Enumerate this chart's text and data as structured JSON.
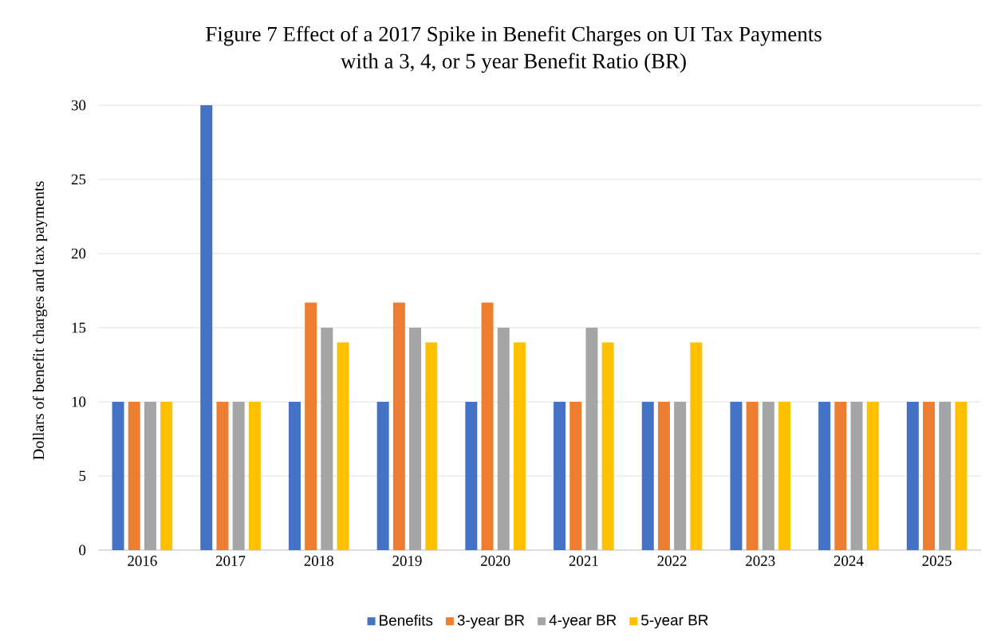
{
  "chart_data": {
    "type": "bar",
    "title": "Figure 7  Effect of a 2017 Spike in Benefit Charges on UI Tax Payments\nwith a 3, 4, or 5 year Benefit Ratio (BR)",
    "ylabel": "Dollars of benefit charges and tax payments",
    "categories": [
      "2016",
      "2017",
      "2018",
      "2019",
      "2020",
      "2021",
      "2022",
      "2023",
      "2024",
      "2025"
    ],
    "series": [
      {
        "name": "Benefits",
        "color": "#4472c4",
        "values": [
          10,
          30,
          10,
          10,
          10,
          10,
          10,
          10,
          10,
          10
        ]
      },
      {
        "name": "3-year BR",
        "color": "#ed7d31",
        "values": [
          10,
          10,
          16.7,
          16.7,
          16.7,
          10,
          10,
          10,
          10,
          10
        ]
      },
      {
        "name": "4-year BR",
        "color": "#a5a5a5",
        "values": [
          10,
          10,
          15,
          15,
          15,
          15,
          10,
          10,
          10,
          10
        ]
      },
      {
        "name": "5-year BR",
        "color": "#ffc000",
        "values": [
          10,
          10,
          14,
          14,
          14,
          14,
          14,
          10,
          10,
          10
        ]
      }
    ],
    "ylim": [
      0,
      30
    ],
    "yticks": [
      0,
      5,
      10,
      15,
      20,
      25,
      30
    ],
    "grid": "y",
    "legend": "bottom"
  }
}
